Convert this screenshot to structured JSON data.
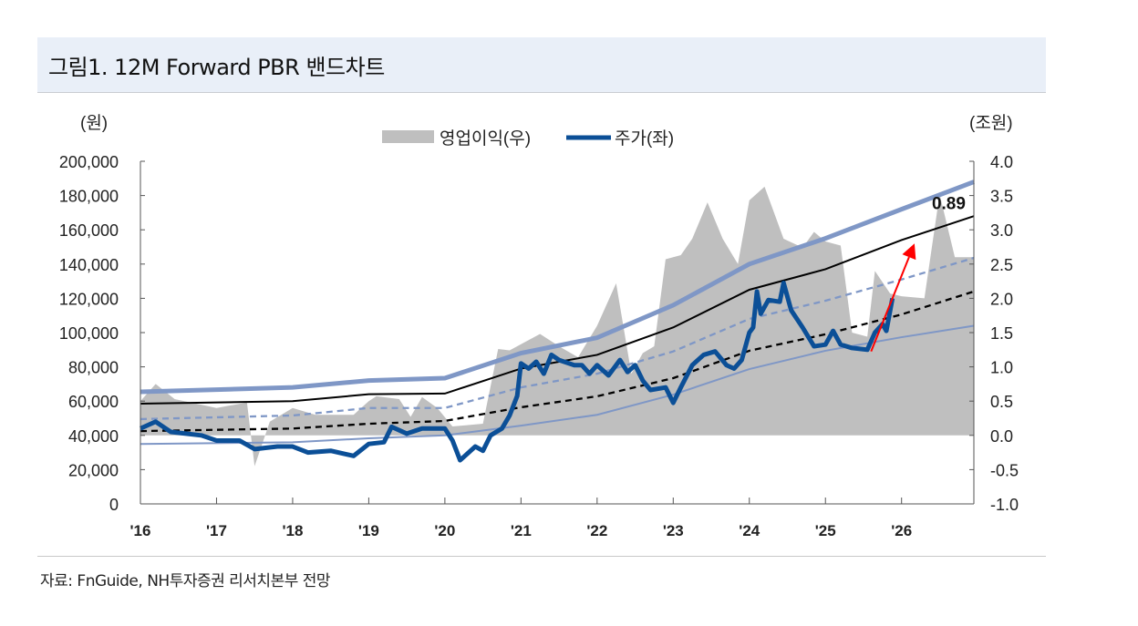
{
  "header": {
    "title": "그림1. 12M Forward PBR  밴드차트"
  },
  "footer": {
    "source": "자료: FnGuide, NH투자증권 리서치본부 전망"
  },
  "chart_data": {
    "type": "line",
    "title": "12M Forward PBR 밴드차트",
    "left_axis": {
      "unit_label": "(원)",
      "ylim": [
        0,
        200000
      ],
      "ticks": [
        "200,000",
        "180,000",
        "160,000",
        "140,000",
        "120,000",
        "100,000",
        "80,000",
        "60,000",
        "40,000",
        "20,000",
        "0"
      ]
    },
    "right_axis": {
      "unit_label": "(조원)",
      "ylim": [
        -1.0,
        4.0
      ],
      "ticks": [
        "4.0",
        "3.5",
        "3.0",
        "2.5",
        "2.0",
        "1.5",
        "1.0",
        "0.5",
        "0.0",
        "-0.5",
        "-1.0"
      ]
    },
    "x_ticks": [
      "'16",
      "'17",
      "'18",
      "'19",
      "'20",
      "'21",
      "'22",
      "'23",
      "'24",
      "'25",
      "'26"
    ],
    "xlim": [
      2016,
      2026.95
    ],
    "legend": {
      "placement": "top-center",
      "items": [
        {
          "label": "영업이익(우)",
          "color": "#bfbfbf"
        },
        {
          "label": "주가(좌)",
          "color": "#0b4f97"
        }
      ]
    },
    "earnings": {
      "name": "영업이익(우)",
      "axis": "right",
      "color": "#bfbfbf",
      "x": [
        2016.0,
        2016.2,
        2016.45,
        2017.0,
        2017.4,
        2017.5,
        2017.7,
        2018.0,
        2018.3,
        2018.8,
        2019.0,
        2019.1,
        2019.4,
        2019.55,
        2019.7,
        2019.9,
        2020.1,
        2020.5,
        2020.7,
        2020.85,
        2021.0,
        2021.25,
        2021.5,
        2021.75,
        2022.0,
        2022.25,
        2022.45,
        2022.6,
        2022.75,
        2022.9,
        2023.1,
        2023.25,
        2023.45,
        2023.65,
        2023.85,
        2024.0,
        2024.2,
        2024.45,
        2024.7,
        2024.85,
        2025.0,
        2025.2,
        2025.35,
        2025.55,
        2025.65,
        2025.85,
        2026.0,
        2026.3,
        2026.5,
        2026.7,
        2026.95
      ],
      "values": [
        0.5,
        0.75,
        0.53,
        0.4,
        0.48,
        -0.45,
        0.2,
        0.4,
        0.3,
        0.3,
        0.5,
        0.57,
        0.53,
        0.27,
        0.56,
        0.4,
        0.13,
        0.17,
        1.26,
        1.24,
        1.33,
        1.48,
        1.3,
        1.14,
        1.6,
        2.22,
        0.9,
        1.2,
        1.3,
        2.57,
        2.63,
        2.87,
        3.4,
        2.87,
        2.5,
        3.43,
        3.63,
        2.87,
        2.74,
        2.97,
        2.83,
        2.77,
        1.5,
        1.44,
        2.4,
        2.07,
        2.03,
        2.0,
        3.52,
        2.6,
        2.6
      ]
    },
    "price": {
      "name": "주가(좌)",
      "axis": "left",
      "color": "#0b4f97",
      "x": [
        2016.0,
        2016.2,
        2016.4,
        2016.8,
        2017.0,
        2017.3,
        2017.5,
        2017.8,
        2018.0,
        2018.2,
        2018.5,
        2018.8,
        2019.0,
        2019.2,
        2019.3,
        2019.5,
        2019.7,
        2020.0,
        2020.1,
        2020.2,
        2020.4,
        2020.5,
        2020.6,
        2020.75,
        2020.85,
        2020.95,
        2021.0,
        2021.1,
        2021.2,
        2021.3,
        2021.4,
        2021.5,
        2021.7,
        2021.8,
        2021.9,
        2022.0,
        2022.15,
        2022.3,
        2022.4,
        2022.5,
        2022.6,
        2022.7,
        2022.9,
        2023.0,
        2023.1,
        2023.25,
        2023.4,
        2023.55,
        2023.7,
        2023.8,
        2023.9,
        2024.0,
        2024.05,
        2024.1,
        2024.15,
        2024.25,
        2024.4,
        2024.45,
        2024.55,
        2024.7,
        2024.85,
        2025.0,
        2025.1,
        2025.2,
        2025.35,
        2025.55,
        2025.65,
        2025.75,
        2025.8,
        2025.88
      ],
      "values": [
        44000,
        48000,
        42000,
        40000,
        37000,
        37000,
        32000,
        33500,
        33500,
        30000,
        31000,
        28000,
        35000,
        36000,
        45000,
        41000,
        44000,
        44000,
        37000,
        25500,
        33500,
        31000,
        40000,
        44000,
        51600,
        63000,
        82000,
        79000,
        83000,
        76000,
        87000,
        84000,
        81000,
        81000,
        76000,
        81000,
        75000,
        84000,
        77000,
        81000,
        72000,
        66500,
        68000,
        59000,
        68000,
        81000,
        87000,
        89000,
        81000,
        79000,
        84000,
        100000,
        103000,
        124000,
        111000,
        119000,
        118000,
        129000,
        113000,
        103000,
        92000,
        93000,
        101000,
        93000,
        91000,
        90000,
        100000,
        105000,
        101000,
        120000
      ]
    },
    "bands": [
      {
        "name": "band-top",
        "color": "#7f97c6",
        "style": "solid-thick",
        "x": [
          2016,
          2018,
          2019,
          2020,
          2021,
          2022,
          2023,
          2024,
          2025,
          2026,
          2026.95
        ],
        "values": [
          65400,
          68000,
          72000,
          73400,
          88000,
          97000,
          116000,
          140000,
          155000,
          172000,
          188000
        ]
      },
      {
        "name": "band-0.89",
        "color": "#000000",
        "style": "solid",
        "x": [
          2016,
          2018,
          2019,
          2020,
          2021,
          2022,
          2023,
          2024,
          2025,
          2026,
          2026.95
        ],
        "values": [
          58500,
          60000,
          64000,
          64400,
          79000,
          87000,
          103000,
          125000,
          137000,
          154000,
          168000
        ]
      },
      {
        "name": "band-mid-high",
        "color": "#7f97c6",
        "style": "dashed",
        "x": [
          2016,
          2018,
          2019,
          2020,
          2021,
          2022,
          2023,
          2024,
          2025,
          2026,
          2026.95
        ],
        "values": [
          49500,
          51600,
          56000,
          56000,
          68000,
          76000,
          89000,
          108000,
          118600,
          131000,
          143600
        ]
      },
      {
        "name": "band-mid-low",
        "color": "#000000",
        "style": "dashed",
        "x": [
          2016,
          2018,
          2019,
          2020,
          2021,
          2022,
          2023,
          2024,
          2025,
          2026,
          2026.95
        ],
        "values": [
          42500,
          44000,
          46800,
          48400,
          56400,
          62800,
          73400,
          89400,
          99000,
          110600,
          124000
        ]
      },
      {
        "name": "band-bottom",
        "color": "#7f97c6",
        "style": "solid-thin",
        "x": [
          2016,
          2018,
          2019,
          2020,
          2021,
          2022,
          2023,
          2024,
          2025,
          2026,
          2026.95
        ],
        "values": [
          35000,
          36000,
          38300,
          40000,
          45700,
          52000,
          63800,
          78700,
          89400,
          97300,
          104000
        ]
      }
    ],
    "annotations": [
      {
        "type": "label",
        "text": "0.89",
        "x": 2026.62,
        "y": 172000
      },
      {
        "type": "arrow",
        "color": "#ff0000",
        "from": [
          2025.6,
          89000
        ],
        "to": [
          2026.17,
          152000
        ]
      }
    ]
  }
}
